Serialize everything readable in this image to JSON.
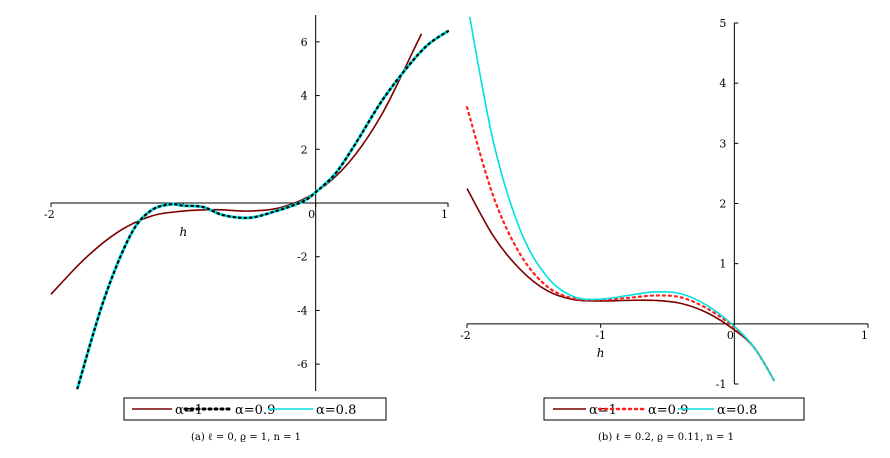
{
  "chart_data": [
    {
      "type": "line",
      "caption": "(a) ℓ = 0, ϱ = 1, n = 1",
      "xlabel": "h",
      "xlim": [
        -2,
        1
      ],
      "ylim": [
        -7,
        7
      ],
      "xticks": [
        -2,
        -1,
        0,
        1
      ],
      "xtick_labels": [
        "-2",
        "h",
        "0",
        "1"
      ],
      "yticks": [
        -6,
        -4,
        -2,
        2,
        4,
        6
      ],
      "ytick_labels": [
        "-6",
        "-4",
        "-2",
        "2",
        "4",
        "6"
      ],
      "legend_position": "bottom",
      "series": [
        {
          "name": "α=1",
          "color": "#7a0000",
          "style": "solid",
          "x": [
            -2,
            -1.75,
            -1.5,
            -1.25,
            -1,
            -0.75,
            -0.5,
            -0.25,
            0,
            0.25,
            0.5,
            0.75,
            0.8
          ],
          "y": [
            -3.4,
            -2.1,
            -1.1,
            -0.5,
            -0.3,
            -0.25,
            -0.3,
            -0.15,
            0.4,
            1.5,
            3.3,
            5.8,
            6.3
          ]
        },
        {
          "name": "α=0.9",
          "color": "#000000",
          "style": "dotted",
          "x": [
            -1.8,
            -1.6,
            -1.4,
            -1.25,
            -1.1,
            -1,
            -0.85,
            -0.7,
            -0.5,
            -0.3,
            -0.1,
            0,
            0.15,
            0.3,
            0.5,
            0.7,
            0.85,
            1
          ],
          "y": [
            -6.9,
            -3.6,
            -1.2,
            -0.3,
            -0.05,
            -0.1,
            -0.15,
            -0.45,
            -0.55,
            -0.3,
            0.05,
            0.4,
            1.1,
            2.2,
            3.8,
            5.1,
            5.9,
            6.4
          ]
        },
        {
          "name": "α=0.8",
          "color": "#00e0e0",
          "style": "solid",
          "x": [
            -1.8,
            -1.6,
            -1.4,
            -1.25,
            -1.1,
            -1,
            -0.85,
            -0.7,
            -0.5,
            -0.3,
            -0.1,
            0,
            0.15,
            0.3,
            0.5,
            0.7,
            0.85,
            1
          ],
          "y": [
            -6.9,
            -3.6,
            -1.2,
            -0.3,
            -0.05,
            -0.1,
            -0.15,
            -0.45,
            -0.55,
            -0.3,
            0.05,
            0.4,
            1.1,
            2.2,
            3.8,
            5.1,
            5.9,
            6.4
          ]
        }
      ]
    },
    {
      "type": "line",
      "caption": "(b) ℓ = 0.2, ϱ = 0.11, n = 1",
      "xlabel": "h",
      "xlim": [
        -2,
        1
      ],
      "ylim": [
        -1,
        5
      ],
      "xticks": [
        -2,
        -1,
        0,
        1
      ],
      "xtick_labels": [
        "-2",
        "-1",
        "0",
        "1"
      ],
      "yticks": [
        -1,
        1,
        2,
        3,
        4,
        5
      ],
      "ytick_labels": [
        "-1",
        "1",
        "2",
        "3",
        "4",
        "5"
      ],
      "legend_position": "bottom",
      "series": [
        {
          "name": "α=1",
          "color": "#7a0000",
          "style": "solid",
          "x": [
            -2,
            -1.8,
            -1.6,
            -1.4,
            -1.2,
            -1,
            -0.8,
            -0.6,
            -0.4,
            -0.2,
            0,
            0.15,
            0.3
          ],
          "y": [
            2.25,
            1.45,
            0.9,
            0.55,
            0.4,
            0.38,
            0.39,
            0.39,
            0.34,
            0.18,
            -0.1,
            -0.4,
            -0.95
          ]
        },
        {
          "name": "α=0.9",
          "color": "#ff2020",
          "style": "dotted",
          "x": [
            -2,
            -1.8,
            -1.6,
            -1.4,
            -1.2,
            -1,
            -0.8,
            -0.6,
            -0.4,
            -0.2,
            0,
            0.15,
            0.3
          ],
          "y": [
            3.6,
            2.1,
            1.15,
            0.62,
            0.42,
            0.4,
            0.43,
            0.47,
            0.44,
            0.25,
            -0.06,
            -0.4,
            -0.95
          ]
        },
        {
          "name": "α=0.8",
          "color": "#00e0e0",
          "style": "solid",
          "x": [
            -1.98,
            -1.8,
            -1.6,
            -1.4,
            -1.2,
            -1,
            -0.8,
            -0.6,
            -0.4,
            -0.2,
            0,
            0.15,
            0.3
          ],
          "y": [
            5.1,
            3.0,
            1.55,
            0.78,
            0.45,
            0.41,
            0.47,
            0.53,
            0.5,
            0.3,
            -0.04,
            -0.4,
            -0.95
          ]
        }
      ]
    }
  ]
}
